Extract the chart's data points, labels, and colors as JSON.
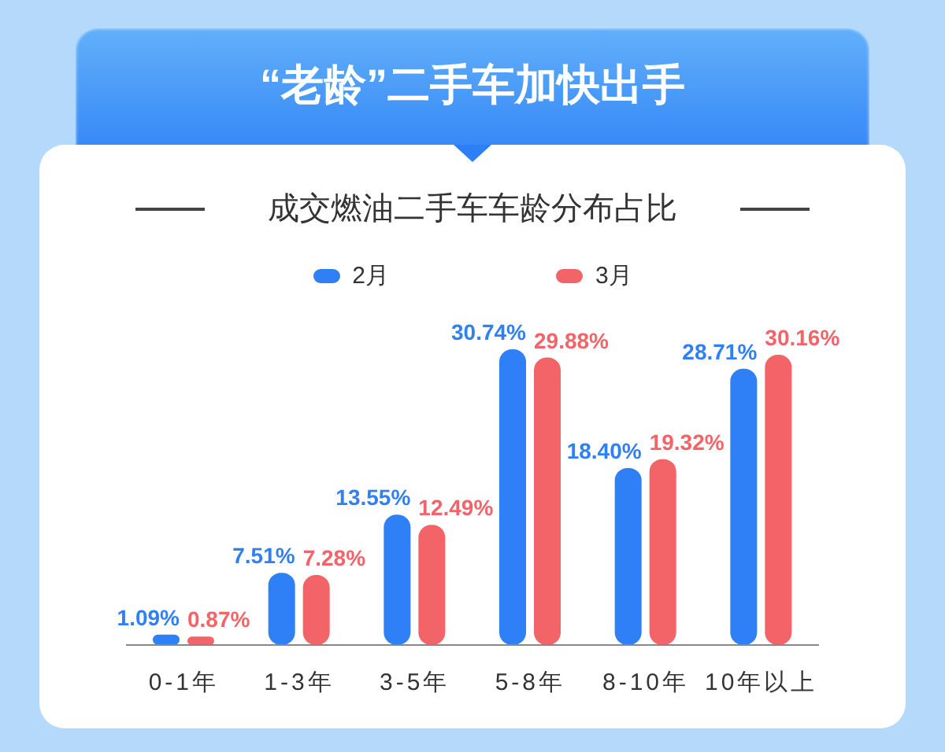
{
  "chart_data": {
    "type": "bar",
    "title": "“老龄”二手车加快出手",
    "subtitle": "成交燃油二手车车龄分布占比",
    "categories": [
      "0-1年",
      "1-3年",
      "3-5年",
      "5-8年",
      "8-10年",
      "10年以上"
    ],
    "series": [
      {
        "name": "2月",
        "color": "#2f7ff6",
        "values": [
          1.09,
          7.51,
          13.55,
          30.74,
          18.4,
          28.71
        ],
        "value_labels": [
          "1.09%",
          "7.51%",
          "13.55%",
          "30.74%",
          "18.40%",
          "28.71%"
        ]
      },
      {
        "name": "3月",
        "color": "#f26468",
        "values": [
          0.87,
          7.28,
          12.49,
          29.88,
          19.32,
          30.16
        ],
        "value_labels": [
          "0.87%",
          "7.28%",
          "12.49%",
          "29.88%",
          "19.32%",
          "30.16%"
        ]
      }
    ],
    "legend": "top",
    "tick_labels": "x"
  }
}
